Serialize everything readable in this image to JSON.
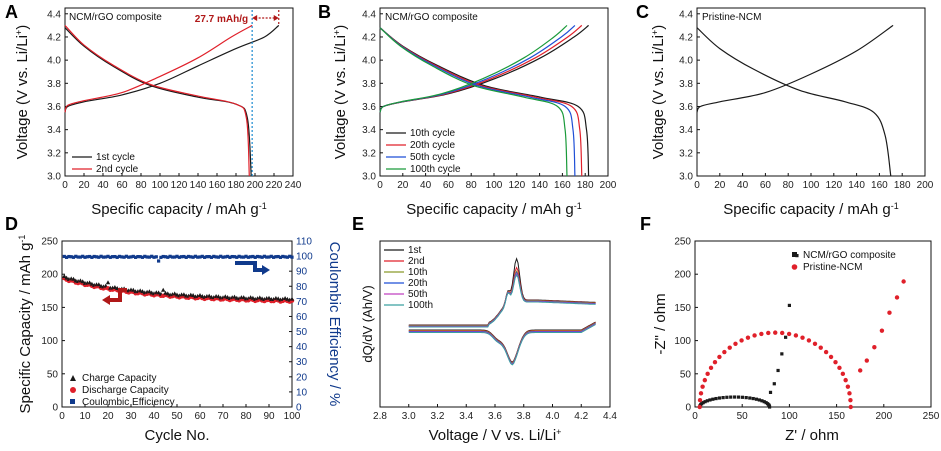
{
  "colors": {
    "black": "#1a1a1a",
    "red": "#e0202a",
    "blue": "#1f4fd6",
    "green": "#1a9a3a",
    "darkred": "#b01818",
    "navy": "#103a8c",
    "dotblue": "#1a8ad0",
    "olive": "#8a9a2a",
    "magenta": "#c040c0",
    "teal": "#3aa0a0"
  },
  "chart_data": [
    {
      "id": "A",
      "type": "line",
      "panel_label": "A",
      "title": "NCM/rGO composite",
      "xlabel": "Specific capacity / mAh g",
      "xlabel_sup": "-1",
      "ylabel": "Voltage (V vs. Li/Li",
      "ylabel_sup": "+",
      "ylabel_end": ")",
      "xlim": [
        0,
        240
      ],
      "ylim": [
        3.0,
        4.45
      ],
      "xticks": [
        "0",
        "20",
        "40",
        "60",
        "80",
        "100",
        "120",
        "140",
        "160",
        "180",
        "200",
        "220",
        "240"
      ],
      "yticks": [
        "3.0",
        "3.2",
        "3.4",
        "3.6",
        "3.8",
        "4.0",
        "4.2",
        "4.4"
      ],
      "annotation": "27.7 mAh/g",
      "annotation_range": [
        197,
        225
      ],
      "series": [
        {
          "name": "1st cycle",
          "color": "black",
          "charge": [
            [
              0,
              3.55
            ],
            [
              3,
              3.6
            ],
            [
              20,
              3.64
            ],
            [
              60,
              3.7
            ],
            [
              100,
              3.8
            ],
            [
              140,
              3.95
            ],
            [
              180,
              4.1
            ],
            [
              210,
              4.2
            ],
            [
              225,
              4.3
            ]
          ],
          "discharge": [
            [
              0,
              4.28
            ],
            [
              20,
              4.12
            ],
            [
              50,
              3.95
            ],
            [
              90,
              3.78
            ],
            [
              140,
              3.68
            ],
            [
              180,
              3.62
            ],
            [
              192,
              3.5
            ],
            [
              196,
              3.0
            ]
          ]
        },
        {
          "name": "2nd cycle",
          "color": "red",
          "charge": [
            [
              0,
              3.55
            ],
            [
              3,
              3.61
            ],
            [
              20,
              3.65
            ],
            [
              60,
              3.72
            ],
            [
              100,
              3.86
            ],
            [
              140,
              4.02
            ],
            [
              175,
              4.2
            ],
            [
              197,
              4.3
            ]
          ],
          "discharge": [
            [
              0,
              4.3
            ],
            [
              20,
              4.13
            ],
            [
              50,
              3.96
            ],
            [
              90,
              3.79
            ],
            [
              140,
              3.69
            ],
            [
              180,
              3.62
            ],
            [
              191,
              3.5
            ],
            [
              194,
              3.0
            ]
          ]
        }
      ]
    },
    {
      "id": "B",
      "type": "line",
      "panel_label": "B",
      "title": "NCM/rGO composite",
      "xlabel": "Specific capacity / mAh g",
      "xlabel_sup": "-1",
      "ylabel": "Voltage (V vs. Li/Li",
      "ylabel_sup": "+",
      "ylabel_end": ")",
      "xlim": [
        0,
        200
      ],
      "ylim": [
        3.0,
        4.45
      ],
      "xticks": [
        "0",
        "20",
        "40",
        "60",
        "80",
        "100",
        "120",
        "140",
        "160",
        "180",
        "200"
      ],
      "yticks": [
        "3.0",
        "3.2",
        "3.4",
        "3.6",
        "3.8",
        "4.0",
        "4.2",
        "4.4"
      ],
      "series": [
        {
          "name": "10th cycle",
          "color": "black",
          "cap": 183
        },
        {
          "name": "20th cycle",
          "color": "red",
          "cap": 177
        },
        {
          "name": "50th cycle",
          "color": "blue",
          "cap": 171
        },
        {
          "name": "100th cycle",
          "color": "green",
          "cap": 164
        }
      ]
    },
    {
      "id": "C",
      "type": "line",
      "panel_label": "C",
      "title": "Pristine-NCM",
      "xlabel": "Specific capacity / mAh g",
      "xlabel_sup": "-1",
      "ylabel": "Voltage (V vs. Li/Li",
      "ylabel_sup": "+",
      "ylabel_end": ")",
      "xlim": [
        0,
        200
      ],
      "ylim": [
        3.0,
        4.45
      ],
      "xticks": [
        "0",
        "20",
        "40",
        "60",
        "80",
        "100",
        "120",
        "140",
        "160",
        "180",
        "200"
      ],
      "yticks": [
        "3.0",
        "3.2",
        "3.4",
        "3.6",
        "3.8",
        "4.0",
        "4.2",
        "4.4"
      ],
      "series": [
        {
          "name": "Pristine",
          "color": "black",
          "charge": [
            [
              0,
              3.55
            ],
            [
              3,
              3.6
            ],
            [
              20,
              3.64
            ],
            [
              60,
              3.72
            ],
            [
              100,
              3.88
            ],
            [
              140,
              4.08
            ],
            [
              172,
              4.3
            ]
          ],
          "discharge": [
            [
              0,
              4.28
            ],
            [
              20,
              4.1
            ],
            [
              50,
              3.92
            ],
            [
              90,
              3.74
            ],
            [
              130,
              3.64
            ],
            [
              155,
              3.55
            ],
            [
              165,
              3.35
            ],
            [
              170,
              3.0
            ]
          ]
        }
      ]
    },
    {
      "id": "D",
      "type": "scatter",
      "panel_label": "D",
      "xlabel": "Cycle No.",
      "ylabel": "Specific Capacity / mAh g",
      "ylabel_sup": "-1",
      "y2label": "Coulombic Efficiency / %",
      "xlim": [
        0,
        100
      ],
      "ylim": [
        0,
        250
      ],
      "y2lim": [
        0,
        110
      ],
      "xticks": [
        "0",
        "10",
        "20",
        "30",
        "40",
        "50",
        "60",
        "70",
        "80",
        "90",
        "100"
      ],
      "yticks": [
        "0",
        "50",
        "100",
        "150",
        "200",
        "250"
      ],
      "y2ticks": [
        "0",
        "10",
        "20",
        "30",
        "40",
        "50",
        "60",
        "70",
        "80",
        "90",
        "100",
        "110"
      ],
      "series": [
        {
          "name": "Charge Capacity",
          "color": "black",
          "marker": "triangle"
        },
        {
          "name": "Discharge Capacity",
          "color": "red",
          "marker": "circle"
        },
        {
          "name": "Coulombic Efficiency",
          "color": "navy",
          "marker": "square"
        }
      ],
      "capacity_start": 193,
      "capacity_end": 160,
      "efficiency": 99.5
    },
    {
      "id": "E",
      "type": "line",
      "panel_label": "E",
      "xlabel": "Voltage / V vs. Li/Li",
      "xlabel_sup": "+",
      "ylabel": "dQ/dV (Ah/V)",
      "xlim": [
        2.8,
        4.4
      ],
      "xticks": [
        "2.8",
        "3.0",
        "3.2",
        "3.4",
        "3.6",
        "3.8",
        "4.0",
        "4.2",
        "4.4"
      ],
      "series": [
        {
          "name": "1st",
          "color": "black",
          "peak": 1.0
        },
        {
          "name": "2nd",
          "color": "red",
          "peak": 0.8
        },
        {
          "name": "10th",
          "color": "olive",
          "peak": 0.72
        },
        {
          "name": "20th",
          "color": "blue",
          "peak": 0.7
        },
        {
          "name": "50th",
          "color": "magenta",
          "peak": 0.68
        },
        {
          "name": "100th",
          "color": "teal",
          "peak": 0.66
        }
      ]
    },
    {
      "id": "F",
      "type": "scatter",
      "panel_label": "F",
      "xlabel": "Z' / ohm",
      "ylabel": "-Z\" / ohm",
      "xlim": [
        0,
        250
      ],
      "ylim": [
        0,
        250
      ],
      "xticks": [
        "0",
        "50",
        "100",
        "150",
        "200",
        "250"
      ],
      "yticks": [
        "0",
        "50",
        "100",
        "150",
        "200",
        "250"
      ],
      "series": [
        {
          "name": "NCM/rGO composite",
          "color": "black",
          "marker": "square"
        },
        {
          "name": "Pristine-NCM",
          "color": "red",
          "marker": "circle"
        }
      ]
    }
  ]
}
